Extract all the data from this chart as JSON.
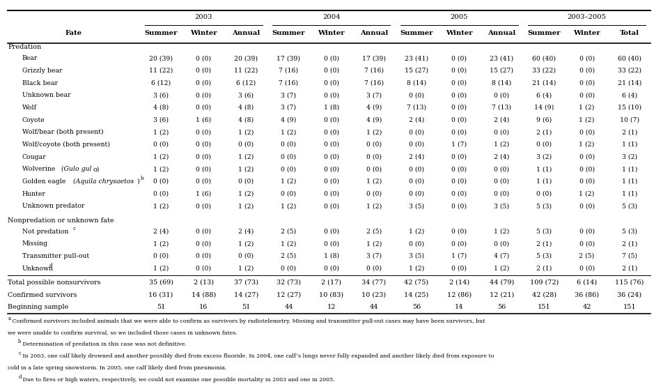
{
  "col_sub_headers": [
    "Summer",
    "Winter",
    "Annual",
    "Summer",
    "Winter",
    "Annual",
    "Summer",
    "Winter",
    "Annual",
    "Summer",
    "Winter",
    "Total"
  ],
  "fate_col_header": "Fate",
  "year_groups": [
    [
      0,
      3,
      "2003"
    ],
    [
      3,
      6,
      "2004"
    ],
    [
      6,
      9,
      "2005"
    ],
    [
      9,
      12,
      "2003–2005"
    ]
  ],
  "sections": [
    {
      "section_name": "Predation",
      "rows": [
        {
          "fate": "Bear",
          "italic_ranges": [],
          "superscript": null,
          "values": [
            "20 (39)",
            "0 (0)",
            "20 (39)",
            "17 (39)",
            "0 (0)",
            "17 (39)",
            "23 (41)",
            "0 (0)",
            "23 (41)",
            "60 (40)",
            "0 (0)",
            "60 (40)"
          ]
        },
        {
          "fate": "Grizzly bear",
          "italic_ranges": [],
          "superscript": null,
          "values": [
            "11 (22)",
            "0 (0)",
            "11 (22)",
            "7 (16)",
            "0 (0)",
            "7 (16)",
            "15 (27)",
            "0 (0)",
            "15 (27)",
            "33 (22)",
            "0 (0)",
            "33 (22)"
          ]
        },
        {
          "fate": "Black bear",
          "italic_ranges": [],
          "superscript": null,
          "values": [
            "6 (12)",
            "0 (0)",
            "6 (12)",
            "7 (16)",
            "0 (0)",
            "7 (16)",
            "8 (14)",
            "0 (0)",
            "8 (14)",
            "21 (14)",
            "0 (0)",
            "21 (14)"
          ]
        },
        {
          "fate": "Unknown bear",
          "italic_ranges": [],
          "superscript": null,
          "values": [
            "3 (6)",
            "0 (0)",
            "3 (6)",
            "3 (7)",
            "0 (0)",
            "3 (7)",
            "0 (0)",
            "0 (0)",
            "0 (0)",
            "6 (4)",
            "0 (0)",
            "6 (4)"
          ]
        },
        {
          "fate": "Wolf",
          "italic_ranges": [],
          "superscript": null,
          "values": [
            "4 (8)",
            "0 (0)",
            "4 (8)",
            "3 (7)",
            "1 (8)",
            "4 (9)",
            "7 (13)",
            "0 (0)",
            "7 (13)",
            "14 (9)",
            "1 (2)",
            "15 (10)"
          ]
        },
        {
          "fate": "Coyote",
          "italic_ranges": [],
          "superscript": null,
          "values": [
            "3 (6)",
            "1 (6)",
            "4 (8)",
            "4 (9)",
            "0 (0)",
            "4 (9)",
            "2 (4)",
            "0 (0)",
            "2 (4)",
            "9 (6)",
            "1 (2)",
            "10 (7)"
          ]
        },
        {
          "fate": "Wolf/bear (both present)",
          "italic_ranges": [],
          "superscript": null,
          "values": [
            "1 (2)",
            "0 (0)",
            "1 (2)",
            "1 (2)",
            "0 (0)",
            "1 (2)",
            "0 (0)",
            "0 (0)",
            "0 (0)",
            "2 (1)",
            "0 (0)",
            "2 (1)"
          ]
        },
        {
          "fate": "Wolf/coyote (both present)",
          "italic_ranges": [],
          "superscript": null,
          "values": [
            "0 (0)",
            "0 (0)",
            "0 (0)",
            "0 (0)",
            "0 (0)",
            "0 (0)",
            "0 (0)",
            "1 (7)",
            "1 (2)",
            "0 (0)",
            "1 (2)",
            "1 (1)"
          ]
        },
        {
          "fate": "Cougar",
          "italic_ranges": [],
          "superscript": null,
          "values": [
            "1 (2)",
            "0 (0)",
            "1 (2)",
            "0 (0)",
            "0 (0)",
            "0 (0)",
            "2 (4)",
            "0 (0)",
            "2 (4)",
            "3 (2)",
            "0 (0)",
            "3 (2)"
          ]
        },
        {
          "fate": "Wolverine (Gulo gulo)",
          "italic_ranges": [
            [
              10,
              19
            ]
          ],
          "superscript": null,
          "values": [
            "1 (2)",
            "0 (0)",
            "1 (2)",
            "0 (0)",
            "0 (0)",
            "0 (0)",
            "0 (0)",
            "0 (0)",
            "0 (0)",
            "1 (1)",
            "0 (0)",
            "1 (1)"
          ]
        },
        {
          "fate": "Golden eagle (Aquila chrysaetos)",
          "italic_ranges": [
            [
              13,
              31
            ]
          ],
          "superscript": "b",
          "values": [
            "0 (0)",
            "0 (0)",
            "0 (0)",
            "1 (2)",
            "0 (0)",
            "1 (2)",
            "0 (0)",
            "0 (0)",
            "0 (0)",
            "1 (1)",
            "0 (0)",
            "1 (1)"
          ]
        },
        {
          "fate": "Hunter",
          "italic_ranges": [],
          "superscript": null,
          "values": [
            "0 (0)",
            "1 (6)",
            "1 (2)",
            "0 (0)",
            "0 (0)",
            "0 (0)",
            "0 (0)",
            "0 (0)",
            "0 (0)",
            "0 (0)",
            "1 (2)",
            "1 (1)"
          ]
        },
        {
          "fate": "Unknown predator",
          "italic_ranges": [],
          "superscript": null,
          "values": [
            "1 (2)",
            "0 (0)",
            "1 (2)",
            "1 (2)",
            "0 (0)",
            "1 (2)",
            "3 (5)",
            "0 (0)",
            "3 (5)",
            "5 (3)",
            "0 (0)",
            "5 (3)"
          ]
        }
      ]
    },
    {
      "section_name": "Nonpredation or unknown fate",
      "rows": [
        {
          "fate": "Not predation",
          "italic_ranges": [],
          "superscript": "c",
          "values": [
            "2 (4)",
            "0 (0)",
            "2 (4)",
            "2 (5)",
            "0 (0)",
            "2 (5)",
            "1 (2)",
            "0 (0)",
            "1 (2)",
            "5 (3)",
            "0 (0)",
            "5 (3)"
          ]
        },
        {
          "fate": "Missing",
          "italic_ranges": [],
          "superscript": null,
          "values": [
            "1 (2)",
            "0 (0)",
            "1 (2)",
            "1 (2)",
            "0 (0)",
            "1 (2)",
            "0 (0)",
            "0 (0)",
            "0 (0)",
            "2 (1)",
            "0 (0)",
            "2 (1)"
          ]
        },
        {
          "fate": "Transmitter pull-out",
          "italic_ranges": [],
          "superscript": null,
          "values": [
            "0 (0)",
            "0 (0)",
            "0 (0)",
            "2 (5)",
            "1 (8)",
            "3 (7)",
            "3 (5)",
            "1 (7)",
            "4 (7)",
            "5 (3)",
            "2 (5)",
            "7 (5)"
          ]
        },
        {
          "fate": "Unknown",
          "italic_ranges": [],
          "superscript": "d",
          "values": [
            "1 (2)",
            "0 (0)",
            "1 (2)",
            "0 (0)",
            "0 (0)",
            "0 (0)",
            "1 (2)",
            "0 (0)",
            "1 (2)",
            "2 (1)",
            "0 (0)",
            "2 (1)"
          ]
        }
      ]
    }
  ],
  "summary_rows": [
    {
      "fate": "Total possible nonsurvivors",
      "values": [
        "35 (69)",
        "2 (13)",
        "37 (73)",
        "32 (73)",
        "2 (17)",
        "34 (77)",
        "42 (75)",
        "2 (14)",
        "44 (79)",
        "109 (72)",
        "6 (14)",
        "115 (76)"
      ]
    },
    {
      "fate": "Confirmed survivors",
      "values": [
        "16 (31)",
        "14 (88)",
        "14 (27)",
        "12 (27)",
        "10 (83)",
        "10 (23)",
        "14 (25)",
        "12 (86)",
        "12 (21)",
        "42 (28)",
        "36 (86)",
        "36 (24)"
      ]
    },
    {
      "fate": "Beginning sample",
      "values": [
        "51",
        "16",
        "51",
        "44",
        "12",
        "44",
        "56",
        "14",
        "56",
        "151",
        "42",
        "151"
      ]
    }
  ],
  "footnote_lines": [
    {
      "parts": [
        {
          "text": "a",
          "super": true
        },
        {
          "text": " Confirmed survivors included animals that we were able to confirm as survivors by radiotelemetry. Missing and transmitter pull-out cases may have been survivors, but",
          "super": false
        }
      ],
      "indent": 0
    },
    {
      "parts": [
        {
          "text": "we were unable to confirm survival, so we included those cases in unknown fates.",
          "super": false
        }
      ],
      "indent": 0
    },
    {
      "parts": [
        {
          "text": "b",
          "super": true
        },
        {
          "text": " Determination of predation in this case was not definitive.",
          "super": false
        }
      ],
      "indent": 1
    },
    {
      "parts": [
        {
          "text": "c",
          "super": true
        },
        {
          "text": " In 2003, one calf likely drowned and another possibly died from excess fluoride. In 2004, one calf’s lungs never fully expanded and another likely died from exposure to",
          "super": false
        }
      ],
      "indent": 1
    },
    {
      "parts": [
        {
          "text": "cold in a late spring snowstorm. In 2005, one calf likely died from pneumonia.",
          "super": false
        }
      ],
      "indent": 0
    },
    {
      "parts": [
        {
          "text": "d",
          "super": true
        },
        {
          "text": " Due to fires or high waters, respectively, we could not examine one possible mortality in 2003 and one in 2005.",
          "super": false
        }
      ],
      "indent": 1
    }
  ]
}
